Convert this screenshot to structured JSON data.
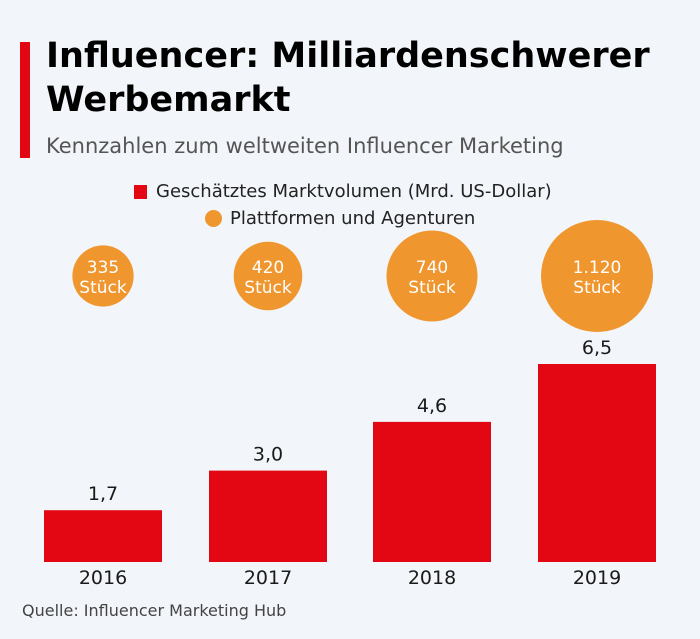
{
  "title_line1": "Influencer: Milliardenschwerer",
  "title_line2": "Werbemarkt",
  "subtitle": "Kennzahlen zum weltweiten Influencer Marketing",
  "source": "Quelle: Influencer Marketing Hub",
  "colors": {
    "bar": "#e30613",
    "bubble": "#f0962e",
    "accent": "#e30613"
  },
  "chart_data": {
    "type": "bar",
    "categories": [
      "2016",
      "2017",
      "2018",
      "2019"
    ],
    "series": [
      {
        "name": "Geschätztes Marktvolumen (Mrd. US-Dollar)",
        "values": [
          1.7,
          3.0,
          4.6,
          6.5
        ],
        "labels": [
          "1,7",
          "3,0",
          "4,6",
          "6,5"
        ]
      },
      {
        "name": "Plattformen und Agenturen",
        "values": [
          335,
          420,
          740,
          1120
        ],
        "labels": [
          "335",
          "420",
          "740",
          "1.120"
        ],
        "unit": "Stück"
      }
    ],
    "title": "Influencer: Milliardenschwerer Werbemarkt",
    "subtitle": "Kennzahlen zum weltweiten Influencer Marketing",
    "xlabel": "",
    "ylabel": "",
    "ylim": [
      0,
      6.5
    ],
    "grid": false,
    "legend_position": "top-center"
  }
}
